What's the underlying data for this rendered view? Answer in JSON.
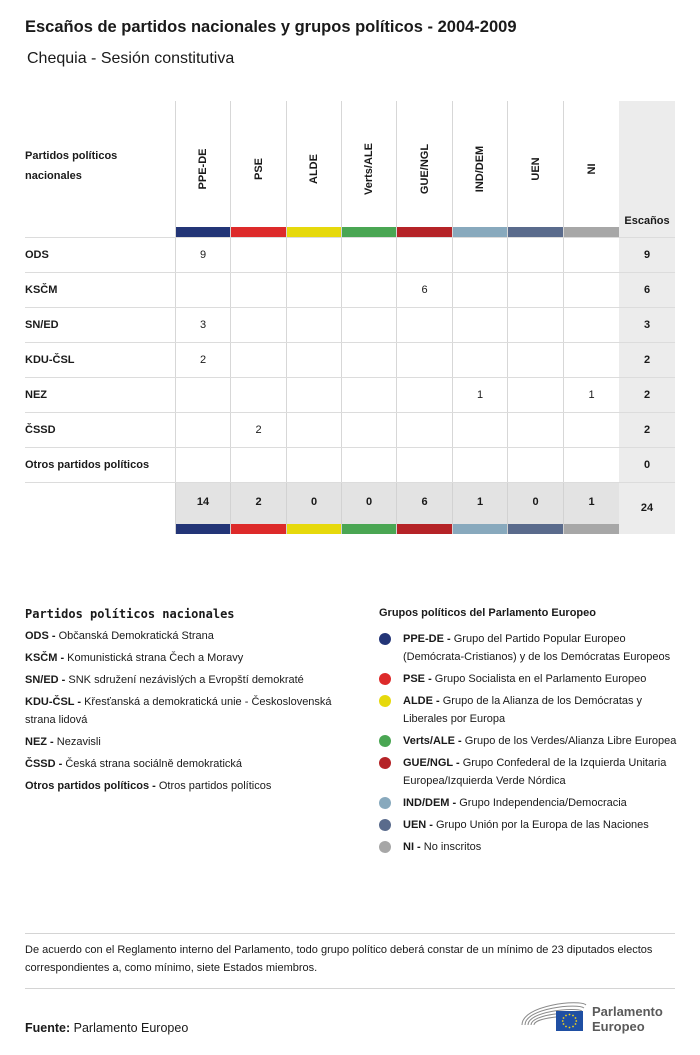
{
  "title": "Escaños de partidos nacionales y grupos políticos - 2004-2009",
  "subtitle": "Chequia - Sesión constitutiva",
  "table": {
    "party_header": "Partidos políticos nacionales",
    "seats_header": "Escaños",
    "groups": [
      {
        "label": "PPE-DE",
        "color": "#233577"
      },
      {
        "label": "PSE",
        "color": "#dd2a2a"
      },
      {
        "label": "ALDE",
        "color": "#e6d90c"
      },
      {
        "label": "Verts/ALE",
        "color": "#4aa653"
      },
      {
        "label": "GUE/NGL",
        "color": "#b52327"
      },
      {
        "label": "IND/DEM",
        "color": "#88a9bd"
      },
      {
        "label": "UEN",
        "color": "#5a6b8c"
      },
      {
        "label": "NI",
        "color": "#a7a7a7"
      }
    ],
    "rows": [
      {
        "party": "ODS",
        "cells": [
          "9",
          "",
          "",
          "",
          "",
          "",
          "",
          ""
        ],
        "seats": "9"
      },
      {
        "party": "KSČM",
        "cells": [
          "",
          "",
          "",
          "",
          "6",
          "",
          "",
          ""
        ],
        "seats": "6"
      },
      {
        "party": "SN/ED",
        "cells": [
          "3",
          "",
          "",
          "",
          "",
          "",
          "",
          ""
        ],
        "seats": "3"
      },
      {
        "party": "KDU-ČSL",
        "cells": [
          "2",
          "",
          "",
          "",
          "",
          "",
          "",
          ""
        ],
        "seats": "2"
      },
      {
        "party": "NEZ",
        "cells": [
          "",
          "",
          "",
          "",
          "",
          "1",
          "",
          "1"
        ],
        "seats": "2"
      },
      {
        "party": "ČSSD",
        "cells": [
          "",
          "2",
          "",
          "",
          "",
          "",
          "",
          ""
        ],
        "seats": "2"
      },
      {
        "party": "Otros partidos políticos",
        "cells": [
          "",
          "",
          "",
          "",
          "",
          "",
          "",
          ""
        ],
        "seats": "0"
      }
    ],
    "totals": [
      "14",
      "2",
      "0",
      "0",
      "6",
      "1",
      "0",
      "1"
    ],
    "total_seats": "24"
  },
  "legend_national": {
    "heading": "Partidos políticos nacionales",
    "items": [
      {
        "abbr": "ODS - ",
        "name": "Občanská Demokratická Strana"
      },
      {
        "abbr": "KSČM - ",
        "name": "Komunistická strana Čech a Moravy"
      },
      {
        "abbr": "SN/ED - ",
        "name": "SNK sdružení nezávislých a Evropští demokraté"
      },
      {
        "abbr": "KDU-ČSL - ",
        "name": "Křesťanská a demokratická unie - Československá strana lidová"
      },
      {
        "abbr": "NEZ - ",
        "name": "Nezavisli"
      },
      {
        "abbr": "ČSSD - ",
        "name": "Česká strana sociálně demokratická"
      },
      {
        "abbr": "Otros partidos políticos - ",
        "name": "Otros partidos políticos"
      }
    ]
  },
  "legend_groups": {
    "heading": "Grupos políticos del Parlamento Europeo",
    "items": [
      {
        "abbr": "PPE-DE - ",
        "name": "Grupo del Partido Popular Europeo (Demócrata-Cristianos) y de los Demócratas Europeos",
        "color": "#233577"
      },
      {
        "abbr": "PSE - ",
        "name": "Grupo Socialista en el Parlamento Europeo",
        "color": "#dd2a2a"
      },
      {
        "abbr": "ALDE - ",
        "name": "Grupo de la Alianza de los Demócratas y Liberales por Europa",
        "color": "#e6d90c"
      },
      {
        "abbr": "Verts/ALE - ",
        "name": "Grupo de los Verdes/Alianza Libre Europea",
        "color": "#4aa653"
      },
      {
        "abbr": "GUE/NGL - ",
        "name": "Grupo Confederal de la Izquierda Unitaria Europea/Izquierda Verde Nórdica",
        "color": "#b52327"
      },
      {
        "abbr": "IND/DEM - ",
        "name": "Grupo Independencia/Democracia",
        "color": "#88a9bd"
      },
      {
        "abbr": "UEN - ",
        "name": "Grupo Unión por la Europa de las Naciones",
        "color": "#5a6b8c"
      },
      {
        "abbr": "NI - ",
        "name": "No inscritos",
        "color": "#a7a7a7"
      }
    ]
  },
  "note": "De acuerdo con el Reglamento interno del Parlamento, todo grupo político deberá constar de un mínimo de 23 diputados electos correspondientes a, como mínimo, siete Estados miembros.",
  "source": {
    "label": "Fuente:",
    "value": "Parlamento Europeo"
  },
  "logo": {
    "line1": "Parlamento",
    "line2": "Europeo"
  }
}
